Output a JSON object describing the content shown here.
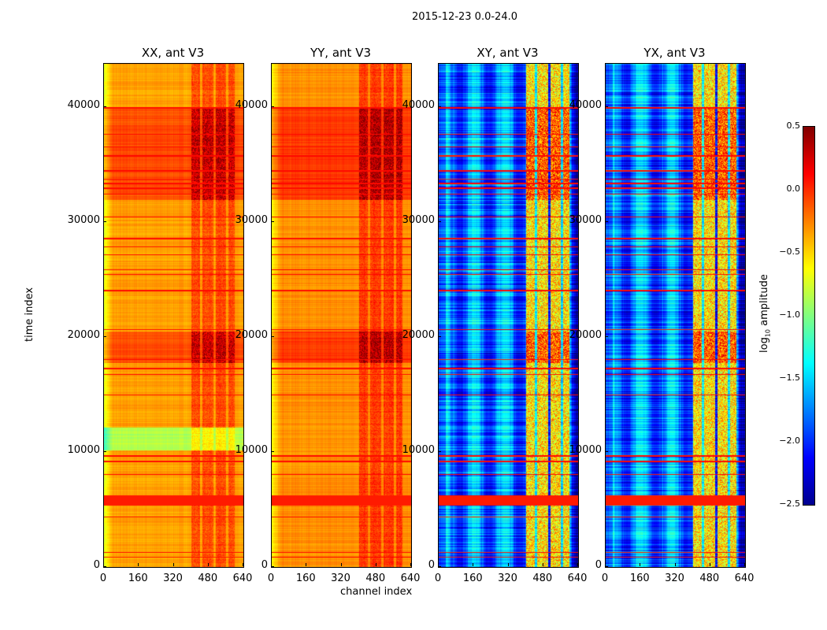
{
  "chart_data": {
    "type": "heatmap",
    "title": "2015-12-23 0.0-24.0",
    "xlabel": "channel index",
    "ylabel": "time index",
    "xlim": [
      0,
      640
    ],
    "ylim": [
      0,
      43800
    ],
    "xticks": [
      "0",
      "160",
      "320",
      "480",
      "640"
    ],
    "xtick_values": [
      0,
      160,
      320,
      480,
      640
    ],
    "yticks": [
      "0",
      "10000",
      "20000",
      "30000",
      "40000"
    ],
    "ytick_values": [
      0,
      10000,
      20000,
      30000,
      40000
    ],
    "panels": [
      {
        "title": "XX, ant V3",
        "kind": "auto",
        "base": -0.35
      },
      {
        "title": "YY, ant V3",
        "kind": "auto",
        "base": -0.3
      },
      {
        "title": "XY, ant V3",
        "kind": "cross",
        "base": -1.75
      },
      {
        "title": "YX, ant V3",
        "kind": "cross",
        "base": -1.75
      }
    ],
    "rfi_channel_ranges": [
      [
        400,
        440
      ],
      [
        450,
        500
      ],
      [
        510,
        560
      ],
      [
        570,
        600
      ]
    ],
    "flagged_time_rows": [
      900,
      1300,
      4400,
      8100,
      9200,
      9700,
      15000,
      16800,
      17300,
      18100,
      20700,
      24100,
      25500,
      25900,
      27200,
      27900,
      28600,
      30500,
      32500,
      33000,
      33400,
      33800,
      34500,
      35800,
      36600,
      37700,
      40000
    ],
    "flagged_time_bands": [
      [
        5400,
        6300
      ]
    ],
    "elevated_time_bands": [
      [
        32000,
        40000
      ],
      [
        17800,
        20500
      ]
    ],
    "low_time_bands": [
      [
        10200,
        12200
      ]
    ],
    "colorbar": {
      "label": "log10 amplitude",
      "range": [
        -2.5,
        0.5
      ],
      "ticks": [
        "0.5",
        "0.0",
        "−0.5",
        "−1.0",
        "−1.5",
        "−2.0",
        "−2.5"
      ],
      "tick_values": [
        0.5,
        0.0,
        -0.5,
        -1.0,
        -1.5,
        -2.0,
        -2.5
      ],
      "colormap": "jet"
    }
  }
}
